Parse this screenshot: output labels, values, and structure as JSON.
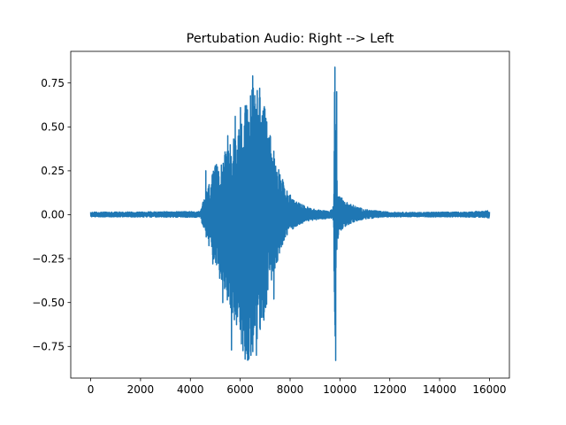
{
  "chart_data": {
    "type": "line",
    "title": "Pertubation Audio: Right --> Left",
    "xlabel": "",
    "ylabel": "",
    "xlim": [
      -800,
      16800
    ],
    "ylim": [
      -0.93,
      0.93
    ],
    "x_ticks": [
      0,
      2000,
      4000,
      6000,
      8000,
      10000,
      12000,
      14000,
      16000
    ],
    "x_tick_labels": [
      "0",
      "2000",
      "4000",
      "6000",
      "8000",
      "10000",
      "12000",
      "14000",
      "16000"
    ],
    "y_ticks": [
      -0.75,
      -0.5,
      -0.25,
      0.0,
      0.25,
      0.5,
      0.75
    ],
    "y_tick_labels": [
      "−0.75",
      "−0.50",
      "−0.25",
      "0.00",
      "0.25",
      "0.50",
      "0.75"
    ],
    "grid": false,
    "legend": "none",
    "series": [
      {
        "color": "#1f77b4",
        "envelope": {
          "x": [
            0,
            4400,
            4600,
            5000,
            5400,
            5800,
            6000,
            6300,
            6600,
            6900,
            7200,
            7500,
            7800,
            8200,
            8600,
            9000,
            9600,
            9750,
            9780,
            9830,
            9870,
            9950,
            10200,
            10600,
            11000,
            11600,
            12000,
            13000,
            14000,
            15000,
            15700,
            16000
          ],
          "upper": [
            0.015,
            0.018,
            0.12,
            0.28,
            0.36,
            0.45,
            0.55,
            0.65,
            0.8,
            0.66,
            0.47,
            0.3,
            0.15,
            0.08,
            0.05,
            0.03,
            0.02,
            0.05,
            0.84,
            0.6,
            0.25,
            0.12,
            0.08,
            0.05,
            0.03,
            0.02,
            0.015,
            0.013,
            0.015,
            0.015,
            0.02,
            0.025
          ],
          "lower": [
            -0.012,
            -0.015,
            -0.12,
            -0.3,
            -0.45,
            -0.62,
            -0.78,
            -0.85,
            -0.82,
            -0.62,
            -0.42,
            -0.26,
            -0.13,
            -0.07,
            -0.04,
            -0.03,
            -0.02,
            -0.04,
            -0.83,
            -0.55,
            -0.22,
            -0.1,
            -0.07,
            -0.04,
            -0.025,
            -0.015,
            -0.012,
            -0.012,
            -0.013,
            -0.013,
            -0.015,
            -0.02
          ]
        },
        "peaks": [
          {
            "x": 4620,
            "y": 0.25
          },
          {
            "x": 4900,
            "y": -0.28
          },
          {
            "x": 5300,
            "y": -0.5
          },
          {
            "x": 5500,
            "y": 0.45
          },
          {
            "x": 5650,
            "y": -0.77
          },
          {
            "x": 5800,
            "y": 0.56
          },
          {
            "x": 5950,
            "y": -0.5
          },
          {
            "x": 6010,
            "y": 0.61
          },
          {
            "x": 6050,
            "y": -0.7
          },
          {
            "x": 6200,
            "y": 0.62
          },
          {
            "x": 6350,
            "y": -0.82
          },
          {
            "x": 6500,
            "y": 0.79
          },
          {
            "x": 6650,
            "y": -0.8
          },
          {
            "x": 6780,
            "y": 0.72
          },
          {
            "x": 6950,
            "y": -0.6
          },
          {
            "x": 7200,
            "y": 0.45
          },
          {
            "x": 7350,
            "y": -0.48
          },
          {
            "x": 7700,
            "y": 0.2
          },
          {
            "x": 9800,
            "y": 0.84
          },
          {
            "x": 9810,
            "y": -0.69
          },
          {
            "x": 9830,
            "y": -0.83
          },
          {
            "x": 9870,
            "y": 0.7
          }
        ]
      }
    ]
  }
}
